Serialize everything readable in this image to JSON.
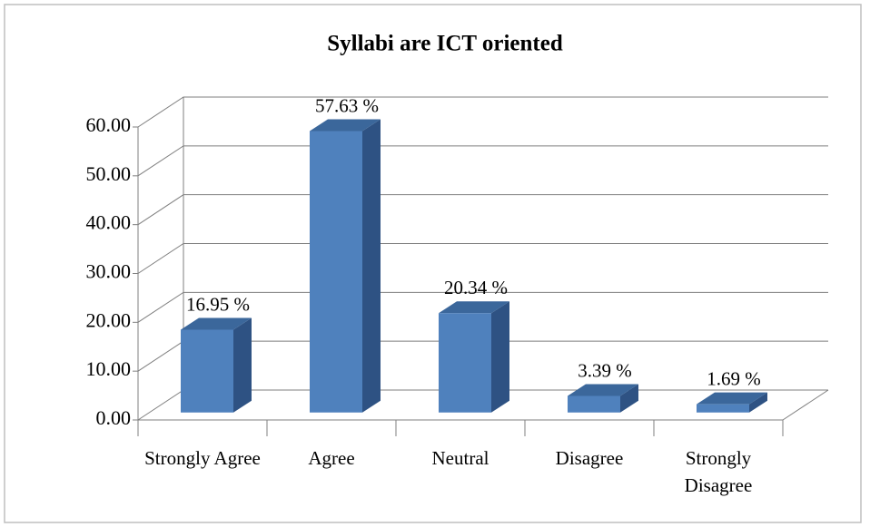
{
  "chart_data": {
    "type": "bar",
    "title": "Syllabi are ICT oriented",
    "categories": [
      "Strongly Agree",
      "Agree",
      "Neutral",
      "Disagree",
      "Strongly Disagree"
    ],
    "values": [
      16.95,
      57.63,
      20.34,
      3.39,
      1.69
    ],
    "value_labels": [
      "16.95 %",
      "57.63 %",
      "20.34 %",
      "3.39 %",
      "1.69 %"
    ],
    "color": "#4f81bd",
    "ylim": [
      0,
      60
    ],
    "yticks": [
      {
        "value": 0,
        "label": "0.00"
      },
      {
        "value": 10,
        "label": "10.00"
      },
      {
        "value": 20,
        "label": "20.00"
      },
      {
        "value": 30,
        "label": "30.00"
      },
      {
        "value": 40,
        "label": "40.00"
      },
      {
        "value": 50,
        "label": "50.00"
      },
      {
        "value": 60,
        "label": "60.00"
      }
    ],
    "grid": true
  }
}
